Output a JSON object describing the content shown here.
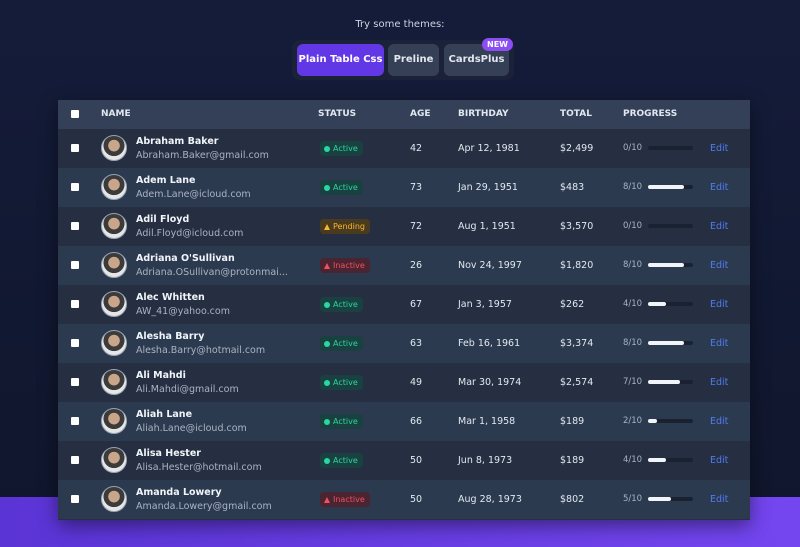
{
  "header": {
    "title": "Try some themes:",
    "themes": [
      {
        "label": "Plain Table Css",
        "active": true
      },
      {
        "label": "Preline"
      },
      {
        "label": "CardsPlus",
        "badge": "NEW"
      }
    ]
  },
  "table": {
    "columns": [
      "NAME",
      "STATUS",
      "AGE",
      "BIRTHDAY",
      "TOTAL",
      "PROGRESS"
    ],
    "action": "Edit",
    "rows": [
      {
        "name": "Abraham Baker",
        "email": "Abraham.Baker@gmail.com",
        "status": "Active",
        "age": "42",
        "birthday": "Apr 12, 1981",
        "total": "$2,499",
        "progress": "0/10"
      },
      {
        "name": "Adem Lane",
        "email": "Adem.Lane@icloud.com",
        "status": "Active",
        "age": "73",
        "birthday": "Jan 29, 1951",
        "total": "$483",
        "progress": "8/10"
      },
      {
        "name": "Adil Floyd",
        "email": "Adil.Floyd@icloud.com",
        "status": "Pending",
        "age": "72",
        "birthday": "Aug 1, 1951",
        "total": "$3,570",
        "progress": "0/10"
      },
      {
        "name": "Adriana O'Sullivan",
        "email": "Adriana.OSullivan@protonmai...",
        "status": "Inactive",
        "age": "26",
        "birthday": "Nov 24, 1997",
        "total": "$1,820",
        "progress": "8/10"
      },
      {
        "name": "Alec Whitten",
        "email": "AW_41@yahoo.com",
        "status": "Active",
        "age": "67",
        "birthday": "Jan 3, 1957",
        "total": "$262",
        "progress": "4/10"
      },
      {
        "name": "Alesha Barry",
        "email": "Alesha.Barry@hotmail.com",
        "status": "Active",
        "age": "63",
        "birthday": "Feb 16, 1961",
        "total": "$3,374",
        "progress": "8/10"
      },
      {
        "name": "Ali Mahdi",
        "email": "Ali.Mahdi@gmail.com",
        "status": "Active",
        "age": "49",
        "birthday": "Mar 30, 1974",
        "total": "$2,574",
        "progress": "7/10"
      },
      {
        "name": "Aliah Lane",
        "email": "Aliah.Lane@icloud.com",
        "status": "Active",
        "age": "66",
        "birthday": "Mar 1, 1958",
        "total": "$189",
        "progress": "2/10"
      },
      {
        "name": "Alisa Hester",
        "email": "Alisa.Hester@hotmail.com",
        "status": "Active",
        "age": "50",
        "birthday": "Jun 8, 1973",
        "total": "$189",
        "progress": "4/10"
      },
      {
        "name": "Amanda Lowery",
        "email": "Amanda.Lowery@gmail.com",
        "status": "Inactive",
        "age": "50",
        "birthday": "Aug 28, 1973",
        "total": "$802",
        "progress": "5/10"
      }
    ]
  }
}
